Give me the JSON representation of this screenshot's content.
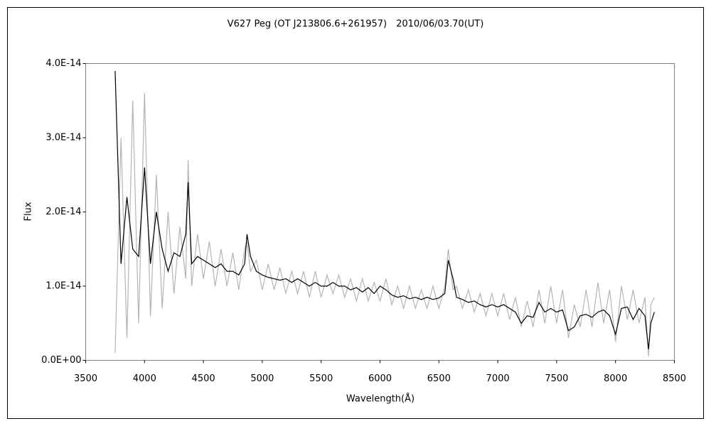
{
  "chart_data": {
    "type": "line",
    "title": "V627 Peg (OT J213806.6+261957)　2010/06/03.70(UT)",
    "x_label": "Wavelength(Å)",
    "y_label": "Flux",
    "x": [
      3750,
      3800,
      3850,
      3900,
      3950,
      4000,
      4050,
      4100,
      4150,
      4200,
      4250,
      4300,
      4350,
      4370,
      4400,
      4450,
      4500,
      4550,
      4600,
      4650,
      4700,
      4750,
      4800,
      4850,
      4870,
      4900,
      4950,
      5000,
      5050,
      5100,
      5150,
      5200,
      5250,
      5300,
      5350,
      5400,
      5450,
      5500,
      5550,
      5600,
      5650,
      5700,
      5750,
      5800,
      5850,
      5900,
      5950,
      6000,
      6050,
      6100,
      6150,
      6200,
      6250,
      6300,
      6350,
      6400,
      6450,
      6500,
      6550,
      6580,
      6620,
      6650,
      6700,
      6750,
      6800,
      6850,
      6900,
      6950,
      7000,
      7050,
      7100,
      7150,
      7200,
      7250,
      7300,
      7350,
      7400,
      7450,
      7500,
      7550,
      7600,
      7650,
      7700,
      7750,
      7800,
      7850,
      7900,
      7950,
      8000,
      8050,
      8100,
      8150,
      8200,
      8250,
      8280,
      8300,
      8330
    ],
    "series": [
      {
        "color": "#b4b4b4",
        "values": [
          1e-15,
          3e-14,
          3e-15,
          3.5e-14,
          5e-15,
          3.6e-14,
          6e-15,
          2.5e-14,
          7e-15,
          2e-14,
          9e-15,
          1.8e-14,
          1.1e-14,
          2.7e-14,
          1e-14,
          1.7e-14,
          1.1e-14,
          1.6e-14,
          1e-14,
          1.5e-14,
          1e-14,
          1.45e-14,
          9.5e-15,
          1.5e-14,
          1.6e-14,
          1.2e-14,
          1.35e-14,
          9.5e-15,
          1.3e-14,
          9.5e-15,
          1.25e-14,
          9e-15,
          1.2e-14,
          9e-15,
          1.2e-14,
          8.5e-15,
          1.2e-14,
          8.5e-15,
          1.15e-14,
          9e-15,
          1.15e-14,
          8.5e-15,
          1.1e-14,
          8e-15,
          1.1e-14,
          8e-15,
          1.05e-14,
          8e-15,
          1.1e-14,
          7.5e-15,
          1e-14,
          7e-15,
          1e-14,
          7e-15,
          9.5e-15,
          7e-15,
          1e-14,
          7e-15,
          1e-14,
          1.5e-14,
          9.5e-15,
          1e-14,
          7e-15,
          9.5e-15,
          6.5e-15,
          9e-15,
          6e-15,
          9e-15,
          6e-15,
          9e-15,
          5.5e-15,
          8.5e-15,
          4.5e-15,
          8e-15,
          4.5e-15,
          9.5e-15,
          5e-15,
          1e-14,
          5e-15,
          9.5e-15,
          3e-15,
          7.5e-15,
          4.5e-15,
          9.5e-15,
          4.5e-15,
          1.05e-14,
          5e-15,
          9.5e-15,
          2.5e-15,
          1e-14,
          5.5e-15,
          9.5e-15,
          5e-15,
          8.5e-15,
          5e-16,
          7.5e-15,
          8.5e-15
        ]
      },
      {
        "color": "#000000",
        "values": [
          3.9e-14,
          1.3e-14,
          2.2e-14,
          1.5e-14,
          1.4e-14,
          2.6e-14,
          1.3e-14,
          2e-14,
          1.5e-14,
          1.2e-14,
          1.45e-14,
          1.4e-14,
          1.7e-14,
          2.4e-14,
          1.3e-14,
          1.4e-14,
          1.35e-14,
          1.3e-14,
          1.25e-14,
          1.3e-14,
          1.2e-14,
          1.2e-14,
          1.15e-14,
          1.3e-14,
          1.7e-14,
          1.4e-14,
          1.2e-14,
          1.15e-14,
          1.12e-14,
          1.1e-14,
          1.08e-14,
          1.1e-14,
          1.05e-14,
          1.1e-14,
          1.05e-14,
          1e-14,
          1.05e-14,
          1e-14,
          1e-14,
          1.05e-14,
          1e-14,
          1e-14,
          9.5e-15,
          9.8e-15,
          9.2e-15,
          9.8e-15,
          9e-15,
          1e-14,
          9.5e-15,
          8.8e-15,
          8.5e-15,
          8.7e-15,
          8.3e-15,
          8.5e-15,
          8.2e-15,
          8.5e-15,
          8.2e-15,
          8.4e-15,
          9e-15,
          1.35e-14,
          1.1e-14,
          8.5e-15,
          8.2e-15,
          7.8e-15,
          8e-15,
          7.5e-15,
          7.2e-15,
          7.5e-15,
          7.2e-15,
          7.5e-15,
          7e-15,
          6.5e-15,
          5e-15,
          6e-15,
          5.8e-15,
          7.8e-15,
          6.5e-15,
          7e-15,
          6.5e-15,
          6.8e-15,
          4e-15,
          4.5e-15,
          6e-15,
          6.2e-15,
          5.8e-15,
          6.5e-15,
          6.8e-15,
          6e-15,
          3.5e-15,
          7e-15,
          7.2e-15,
          5.5e-15,
          7e-15,
          6e-15,
          1.5e-15,
          5e-15,
          6.5e-15
        ]
      }
    ],
    "xlim": [
      3500,
      8500
    ],
    "xticks": [
      3500,
      4000,
      4500,
      5000,
      5500,
      6000,
      6500,
      7000,
      7500,
      8000,
      8500
    ],
    "ylim": [
      0,
      4e-14
    ],
    "yticks": [
      {
        "value": 0,
        "label": "0.0E+00"
      },
      {
        "value": 1e-14,
        "label": "1.0E-14"
      },
      {
        "value": 2e-14,
        "label": "2.0E-14"
      },
      {
        "value": 3e-14,
        "label": "3.0E-14"
      },
      {
        "value": 4e-14,
        "label": "4.0E-14"
      }
    ],
    "grid": false
  }
}
